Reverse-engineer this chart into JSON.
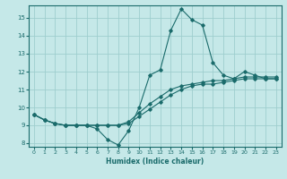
{
  "title": "",
  "xlabel": "Humidex (Indice chaleur)",
  "background_color": "#c5e8e8",
  "grid_color": "#9ecece",
  "line_color": "#1a6b6b",
  "xlim": [
    -0.5,
    23.5
  ],
  "ylim": [
    7.8,
    15.7
  ],
  "xticks": [
    0,
    1,
    2,
    3,
    4,
    5,
    6,
    7,
    8,
    9,
    10,
    11,
    12,
    13,
    14,
    15,
    16,
    17,
    18,
    19,
    20,
    21,
    22,
    23
  ],
  "yticks": [
    8,
    9,
    10,
    11,
    12,
    13,
    14,
    15
  ],
  "line1_x": [
    0,
    1,
    2,
    3,
    4,
    5,
    6,
    7,
    8,
    9,
    10,
    11,
    12,
    13,
    14,
    15,
    16,
    17,
    18,
    19,
    20,
    21,
    22,
    23
  ],
  "line1_y": [
    9.6,
    9.3,
    9.1,
    9.0,
    9.0,
    9.0,
    8.8,
    8.2,
    7.9,
    8.7,
    10.0,
    11.8,
    12.1,
    14.3,
    15.5,
    14.9,
    14.6,
    12.5,
    11.8,
    11.6,
    12.0,
    11.8,
    11.6,
    11.6
  ],
  "line2_x": [
    0,
    1,
    2,
    3,
    4,
    5,
    6,
    7,
    8,
    9,
    10,
    11,
    12,
    13,
    14,
    15,
    16,
    17,
    18,
    19,
    20,
    21,
    22,
    23
  ],
  "line2_y": [
    9.6,
    9.3,
    9.1,
    9.0,
    9.0,
    9.0,
    9.0,
    9.0,
    9.0,
    9.1,
    9.5,
    9.9,
    10.3,
    10.7,
    11.0,
    11.2,
    11.3,
    11.3,
    11.4,
    11.5,
    11.6,
    11.6,
    11.6,
    11.6
  ],
  "line3_x": [
    0,
    1,
    2,
    3,
    4,
    5,
    6,
    7,
    8,
    9,
    10,
    11,
    12,
    13,
    14,
    15,
    16,
    17,
    18,
    19,
    20,
    21,
    22,
    23
  ],
  "line3_y": [
    9.6,
    9.3,
    9.1,
    9.0,
    9.0,
    9.0,
    9.0,
    9.0,
    9.0,
    9.2,
    9.7,
    10.2,
    10.6,
    11.0,
    11.2,
    11.3,
    11.4,
    11.5,
    11.5,
    11.6,
    11.7,
    11.7,
    11.7,
    11.7
  ]
}
